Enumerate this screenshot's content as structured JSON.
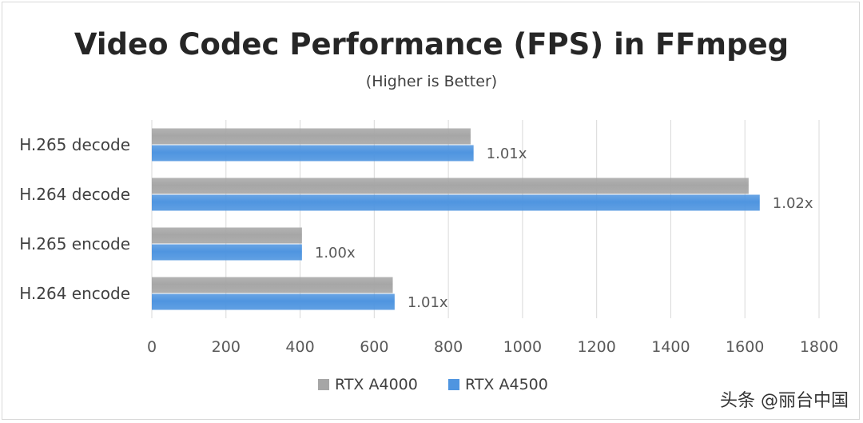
{
  "chart_data": {
    "type": "bar",
    "orientation": "horizontal",
    "title": "Video Codec Performance (FPS) in FFmpeg",
    "subtitle": "(Higher is Better)",
    "categories": [
      "H.265 decode",
      "H.264 decode",
      "H.265 encode",
      "H.264 encode"
    ],
    "series": [
      {
        "name": "RTX A4000",
        "values": [
          860,
          1610,
          405,
          650
        ],
        "color": "#a6a6a6"
      },
      {
        "name": "RTX A4500",
        "values": [
          868,
          1640,
          405,
          655
        ],
        "color": "#4f95e0"
      }
    ],
    "data_labels": [
      "1.01x",
      "1.02x",
      "1.00x",
      "1.01x"
    ],
    "xlim": [
      0,
      1800
    ],
    "xticks": [
      0,
      200,
      400,
      600,
      800,
      1000,
      1200,
      1400,
      1600,
      1800
    ],
    "grid": "vertical",
    "legend": "bottom"
  },
  "watermark": "头条 @丽台中国"
}
